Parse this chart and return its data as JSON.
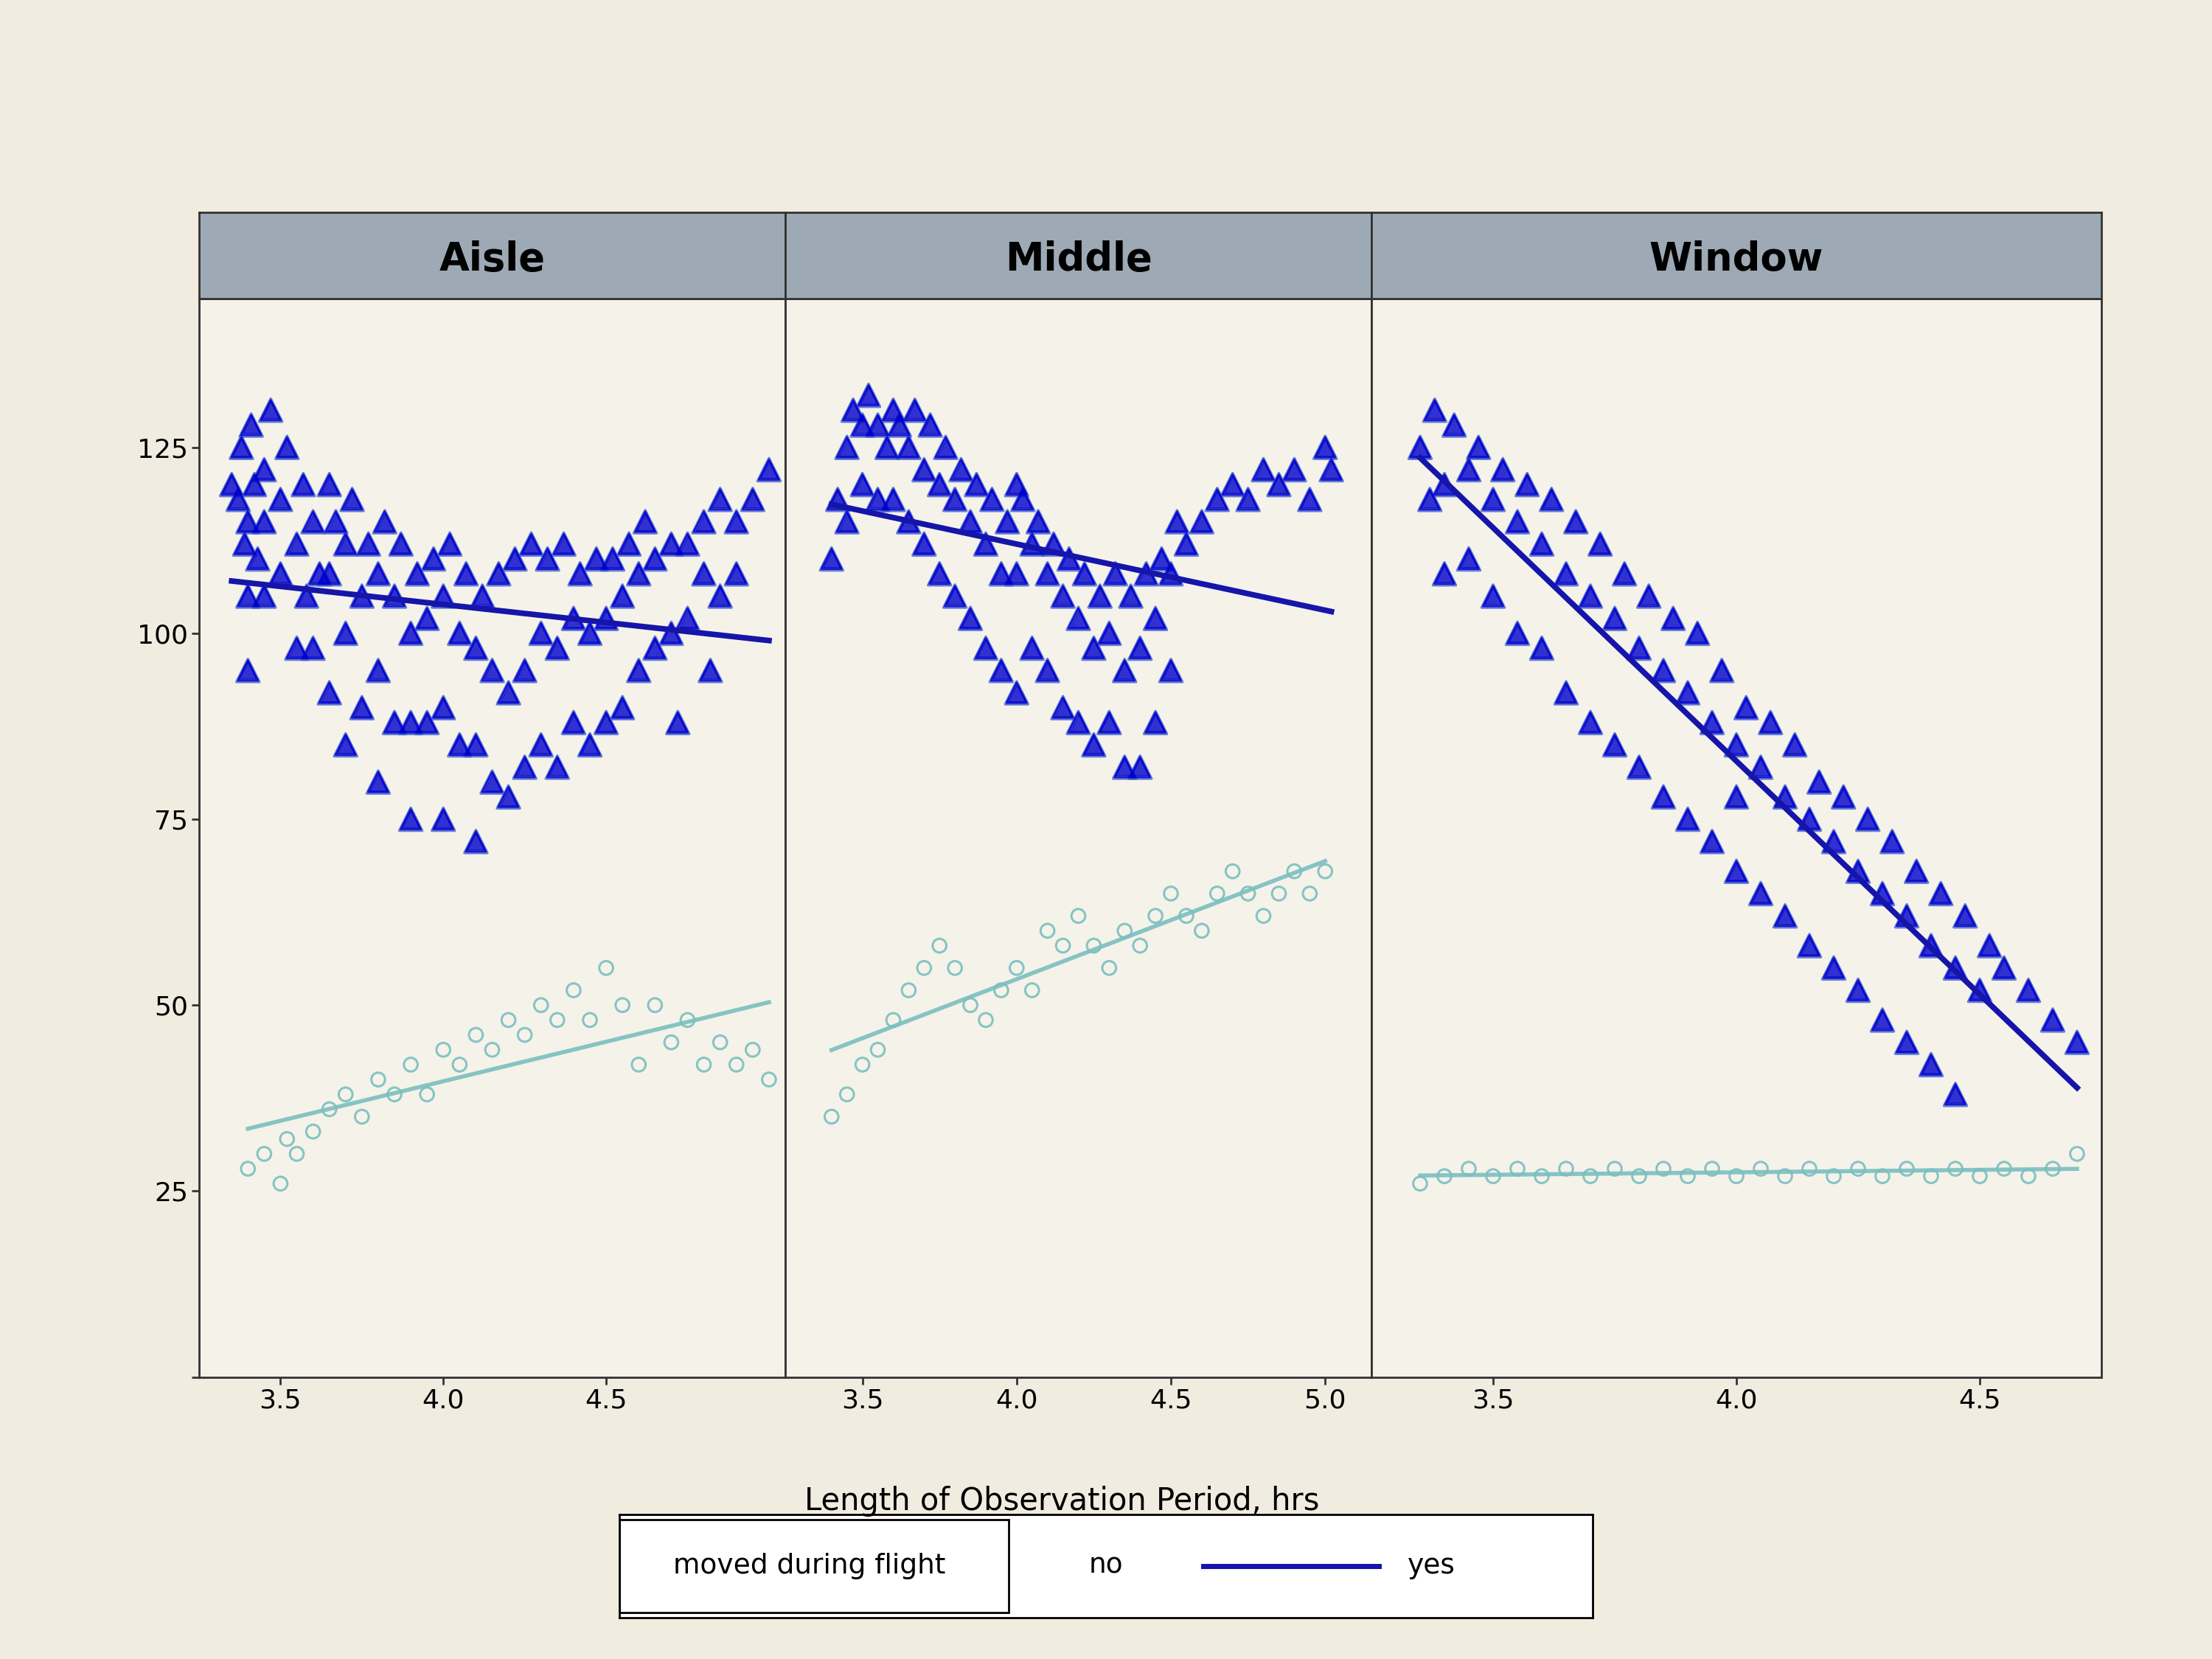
{
  "panels": [
    "Aisle",
    "Middle",
    "Window"
  ],
  "xlabel": "Length of Observation Period, hrs",
  "ylim": [
    0,
    145
  ],
  "yticks": [
    0,
    25,
    50,
    75,
    100,
    125
  ],
  "xticks_aisle": [
    3.5,
    4.0,
    4.5
  ],
  "xticks_middle": [
    3.5,
    4.0,
    4.5,
    5.0
  ],
  "xticks_window": [
    3.5,
    4.0,
    4.5
  ],
  "xlim_aisle": [
    3.25,
    5.05
  ],
  "xlim_middle": [
    3.25,
    5.15
  ],
  "xlim_window": [
    3.25,
    4.75
  ],
  "bg_color": "#f0ece0",
  "plot_bg_color": "#f5f2ea",
  "header_color": "#9daab5",
  "tri_color_dark": "#0000cc",
  "tri_color_light": "#3355cc",
  "circle_color": "#7abfbf",
  "trend_yes_color": "#1515aa",
  "trend_no_color": "#7abfbf",
  "legend_label_moved": "moved during flight",
  "legend_label_no": "no",
  "legend_label_yes": "yes",
  "aisle_yes_x": [
    3.35,
    3.37,
    3.38,
    3.39,
    3.4,
    3.4,
    3.4,
    3.41,
    3.42,
    3.43,
    3.45,
    3.45,
    3.45,
    3.47,
    3.5,
    3.5,
    3.52,
    3.55,
    3.55,
    3.57,
    3.58,
    3.6,
    3.6,
    3.62,
    3.65,
    3.65,
    3.65,
    3.67,
    3.7,
    3.7,
    3.7,
    3.72,
    3.75,
    3.75,
    3.77,
    3.8,
    3.8,
    3.8,
    3.82,
    3.85,
    3.85,
    3.87,
    3.9,
    3.9,
    3.9,
    3.92,
    3.95,
    3.95,
    3.97,
    4.0,
    4.0,
    4.0,
    4.02,
    4.05,
    4.05,
    4.07,
    4.1,
    4.1,
    4.1,
    4.12,
    4.15,
    4.15,
    4.17,
    4.2,
    4.2,
    4.22,
    4.25,
    4.25,
    4.27,
    4.3,
    4.3,
    4.32,
    4.35,
    4.35,
    4.37,
    4.4,
    4.4,
    4.42,
    4.45,
    4.45,
    4.47,
    4.5,
    4.5,
    4.52,
    4.55,
    4.55,
    4.57,
    4.6,
    4.6,
    4.62,
    4.65,
    4.65,
    4.7,
    4.7,
    4.72,
    4.75,
    4.75,
    4.8,
    4.8,
    4.82,
    4.85,
    4.85,
    4.9,
    4.9,
    4.95,
    5.0
  ],
  "aisle_yes_y": [
    120,
    118,
    125,
    112,
    115,
    105,
    95,
    128,
    120,
    110,
    122,
    115,
    105,
    130,
    118,
    108,
    125,
    112,
    98,
    120,
    105,
    115,
    98,
    108,
    120,
    108,
    92,
    115,
    112,
    100,
    85,
    118,
    105,
    90,
    112,
    108,
    95,
    80,
    115,
    105,
    88,
    112,
    100,
    88,
    75,
    108,
    102,
    88,
    110,
    105,
    90,
    75,
    112,
    100,
    85,
    108,
    98,
    85,
    72,
    105,
    95,
    80,
    108,
    92,
    78,
    110,
    95,
    82,
    112,
    100,
    85,
    110,
    98,
    82,
    112,
    102,
    88,
    108,
    100,
    85,
    110,
    102,
    88,
    110,
    105,
    90,
    112,
    108,
    95,
    115,
    110,
    98,
    112,
    100,
    88,
    112,
    102,
    115,
    108,
    95,
    118,
    105,
    115,
    108,
    118,
    122
  ],
  "aisle_no_x": [
    3.4,
    3.45,
    3.5,
    3.52,
    3.55,
    3.6,
    3.65,
    3.7,
    3.75,
    3.8,
    3.85,
    3.9,
    3.95,
    4.0,
    4.05,
    4.1,
    4.15,
    4.2,
    4.25,
    4.3,
    4.35,
    4.4,
    4.45,
    4.5,
    4.55,
    4.6,
    4.65,
    4.7,
    4.75,
    4.8,
    4.85,
    4.9,
    4.95,
    5.0
  ],
  "aisle_no_y": [
    28,
    30,
    26,
    32,
    30,
    33,
    36,
    38,
    35,
    40,
    38,
    42,
    38,
    44,
    42,
    46,
    44,
    48,
    46,
    50,
    48,
    52,
    48,
    55,
    50,
    42,
    50,
    45,
    48,
    42,
    45,
    42,
    44,
    40
  ],
  "middle_yes_x": [
    3.4,
    3.42,
    3.45,
    3.45,
    3.47,
    3.5,
    3.5,
    3.52,
    3.55,
    3.55,
    3.58,
    3.6,
    3.6,
    3.62,
    3.65,
    3.65,
    3.67,
    3.7,
    3.7,
    3.72,
    3.75,
    3.75,
    3.77,
    3.8,
    3.8,
    3.82,
    3.85,
    3.85,
    3.87,
    3.9,
    3.9,
    3.92,
    3.95,
    3.95,
    3.97,
    4.0,
    4.0,
    4.0,
    4.02,
    4.05,
    4.05,
    4.07,
    4.1,
    4.1,
    4.12,
    4.15,
    4.15,
    4.17,
    4.2,
    4.2,
    4.22,
    4.25,
    4.25,
    4.27,
    4.3,
    4.3,
    4.32,
    4.35,
    4.35,
    4.37,
    4.4,
    4.4,
    4.42,
    4.45,
    4.45,
    4.47,
    4.5,
    4.5,
    4.52,
    4.55,
    4.6,
    4.65,
    4.7,
    4.75,
    4.8,
    4.85,
    4.9,
    4.95,
    5.0,
    5.02
  ],
  "middle_yes_y": [
    110,
    118,
    125,
    115,
    130,
    128,
    120,
    132,
    128,
    118,
    125,
    130,
    118,
    128,
    125,
    115,
    130,
    122,
    112,
    128,
    120,
    108,
    125,
    118,
    105,
    122,
    115,
    102,
    120,
    112,
    98,
    118,
    108,
    95,
    115,
    120,
    108,
    92,
    118,
    112,
    98,
    115,
    108,
    95,
    112,
    105,
    90,
    110,
    102,
    88,
    108,
    98,
    85,
    105,
    100,
    88,
    108,
    95,
    82,
    105,
    98,
    82,
    108,
    102,
    88,
    110,
    108,
    95,
    115,
    112,
    115,
    118,
    120,
    118,
    122,
    120,
    122,
    118,
    125,
    122
  ],
  "middle_no_x": [
    3.4,
    3.45,
    3.5,
    3.55,
    3.6,
    3.65,
    3.7,
    3.75,
    3.8,
    3.85,
    3.9,
    3.95,
    4.0,
    4.05,
    4.1,
    4.15,
    4.2,
    4.25,
    4.3,
    4.35,
    4.4,
    4.45,
    4.5,
    4.55,
    4.6,
    4.65,
    4.7,
    4.75,
    4.8,
    4.85,
    4.9,
    4.95,
    5.0
  ],
  "middle_no_y": [
    35,
    38,
    42,
    44,
    48,
    52,
    55,
    58,
    55,
    50,
    48,
    52,
    55,
    52,
    60,
    58,
    62,
    58,
    55,
    60,
    58,
    62,
    65,
    62,
    60,
    65,
    68,
    65,
    62,
    65,
    68,
    65,
    68
  ],
  "window_yes_x": [
    3.35,
    3.37,
    3.38,
    3.4,
    3.4,
    3.42,
    3.45,
    3.45,
    3.47,
    3.5,
    3.5,
    3.52,
    3.55,
    3.55,
    3.57,
    3.6,
    3.6,
    3.62,
    3.65,
    3.65,
    3.67,
    3.7,
    3.7,
    3.72,
    3.75,
    3.75,
    3.77,
    3.8,
    3.8,
    3.82,
    3.85,
    3.85,
    3.87,
    3.9,
    3.9,
    3.92,
    3.95,
    3.95,
    3.97,
    4.0,
    4.0,
    4.0,
    4.02,
    4.05,
    4.05,
    4.07,
    4.1,
    4.1,
    4.12,
    4.15,
    4.15,
    4.17,
    4.2,
    4.2,
    4.22,
    4.25,
    4.25,
    4.27,
    4.3,
    4.3,
    4.32,
    4.35,
    4.35,
    4.37,
    4.4,
    4.4,
    4.42,
    4.45,
    4.45,
    4.47,
    4.5,
    4.52,
    4.55,
    4.6,
    4.65,
    4.7
  ],
  "window_yes_y": [
    125,
    118,
    130,
    120,
    108,
    128,
    122,
    110,
    125,
    118,
    105,
    122,
    115,
    100,
    120,
    112,
    98,
    118,
    108,
    92,
    115,
    105,
    88,
    112,
    102,
    85,
    108,
    98,
    82,
    105,
    95,
    78,
    102,
    92,
    75,
    100,
    88,
    72,
    95,
    85,
    68,
    78,
    90,
    82,
    65,
    88,
    78,
    62,
    85,
    75,
    58,
    80,
    72,
    55,
    78,
    68,
    52,
    75,
    65,
    48,
    72,
    62,
    45,
    68,
    58,
    42,
    65,
    55,
    38,
    62,
    52,
    58,
    55,
    52,
    48,
    45
  ],
  "window_no_x": [
    3.35,
    3.4,
    3.45,
    3.5,
    3.55,
    3.6,
    3.65,
    3.7,
    3.75,
    3.8,
    3.85,
    3.9,
    3.95,
    4.0,
    4.05,
    4.1,
    4.15,
    4.2,
    4.25,
    4.3,
    4.35,
    4.4,
    4.45,
    4.5,
    4.55,
    4.6,
    4.65,
    4.7
  ],
  "window_no_y": [
    26,
    27,
    28,
    27,
    28,
    27,
    28,
    27,
    28,
    27,
    28,
    27,
    28,
    27,
    28,
    27,
    28,
    27,
    28,
    27,
    28,
    27,
    28,
    27,
    28,
    27,
    28,
    30
  ]
}
